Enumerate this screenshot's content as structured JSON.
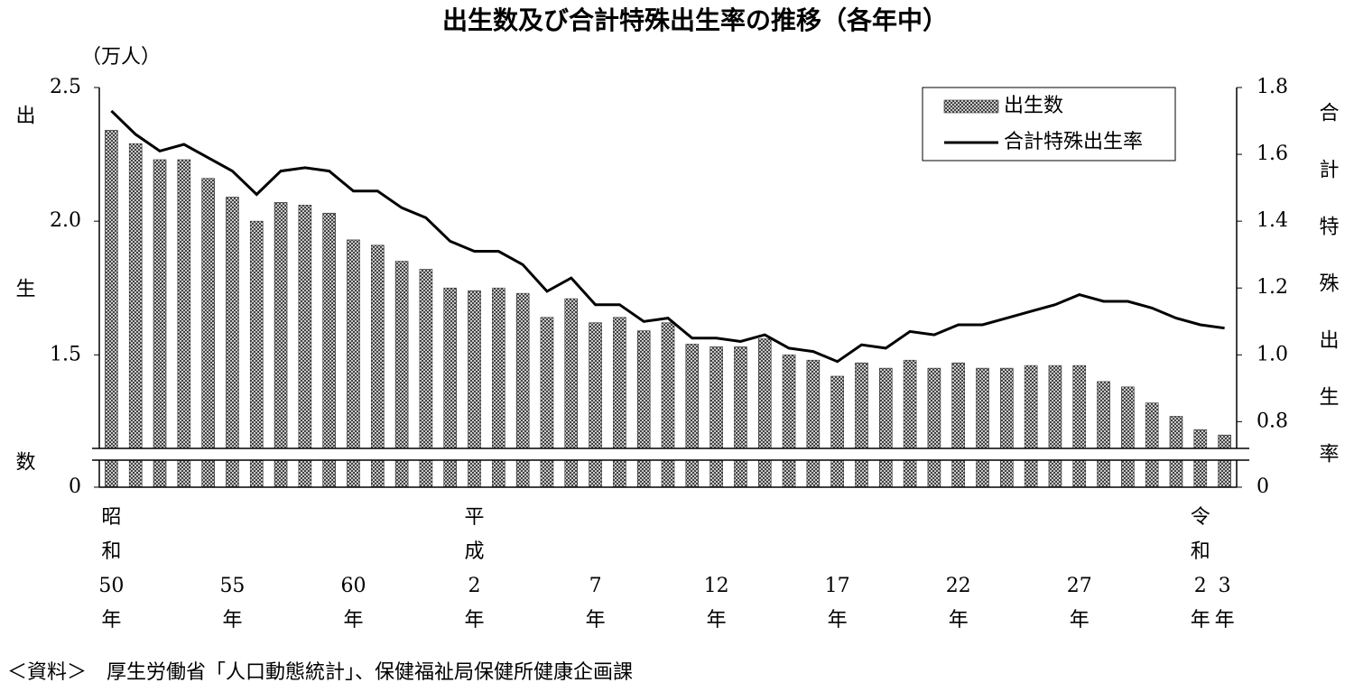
{
  "chart_data": {
    "type": "bar-line",
    "title": "出生数及び合計特殊出生率の推移（各年中）",
    "y_unit": "（万人）",
    "ylabel": "出生数",
    "y2label": "合計特殊出生率",
    "source": "＜資料＞　厚生労働省「人口動態統計」、保健福祉局保健所健康企画課",
    "categories": [
      "昭和50年",
      null,
      null,
      null,
      null,
      "55年",
      null,
      null,
      null,
      null,
      "60年",
      null,
      null,
      null,
      null,
      "平成2年",
      null,
      null,
      null,
      null,
      "7年",
      null,
      null,
      null,
      null,
      "12年",
      null,
      null,
      null,
      null,
      "17年",
      null,
      null,
      null,
      null,
      "22年",
      null,
      null,
      null,
      null,
      "27年",
      null,
      null,
      null,
      null,
      "令和2年",
      "3年"
    ],
    "ylim": [
      0,
      2.5
    ],
    "ybreak": 1.15,
    "yticks": [
      0,
      1.5,
      {
        "value": 2,
        "label": "2.0"
      },
      2.5
    ],
    "y2lim": [
      0,
      1.8
    ],
    "y2break": 0.72,
    "y2ticks": [
      0,
      0.8,
      {
        "value": 1,
        "label": "1.0"
      },
      1.2,
      1.4,
      1.6,
      1.8
    ],
    "legend": "upper-right",
    "series": [
      {
        "name": "出生数",
        "type": "bar",
        "color": "#333333",
        "values": [
          2.34,
          2.29,
          2.23,
          2.23,
          2.16,
          2.09,
          2.0,
          2.07,
          2.06,
          2.03,
          1.93,
          1.91,
          1.85,
          1.82,
          1.75,
          1.74,
          1.75,
          1.73,
          1.64,
          1.71,
          1.62,
          1.64,
          1.59,
          1.62,
          1.54,
          1.53,
          1.53,
          1.56,
          1.5,
          1.48,
          1.42,
          1.47,
          1.45,
          1.48,
          1.45,
          1.47,
          1.45,
          1.45,
          1.46,
          1.46,
          1.46,
          1.4,
          1.38,
          1.32,
          1.27,
          1.22,
          1.2
        ]
      },
      {
        "name": "合計特殊出生率",
        "type": "line",
        "axis": "y2",
        "color": "#000000",
        "values": [
          1.73,
          1.66,
          1.61,
          1.63,
          1.59,
          1.55,
          1.48,
          1.55,
          1.56,
          1.55,
          1.49,
          1.49,
          1.44,
          1.41,
          1.34,
          1.31,
          1.31,
          1.27,
          1.19,
          1.23,
          1.15,
          1.15,
          1.1,
          1.11,
          1.05,
          1.05,
          1.04,
          1.06,
          1.02,
          1.01,
          0.98,
          1.03,
          1.02,
          1.07,
          1.06,
          1.09,
          1.09,
          1.11,
          1.13,
          1.15,
          1.18,
          1.16,
          1.16,
          1.14,
          1.11,
          1.09,
          1.08
        ]
      }
    ]
  }
}
